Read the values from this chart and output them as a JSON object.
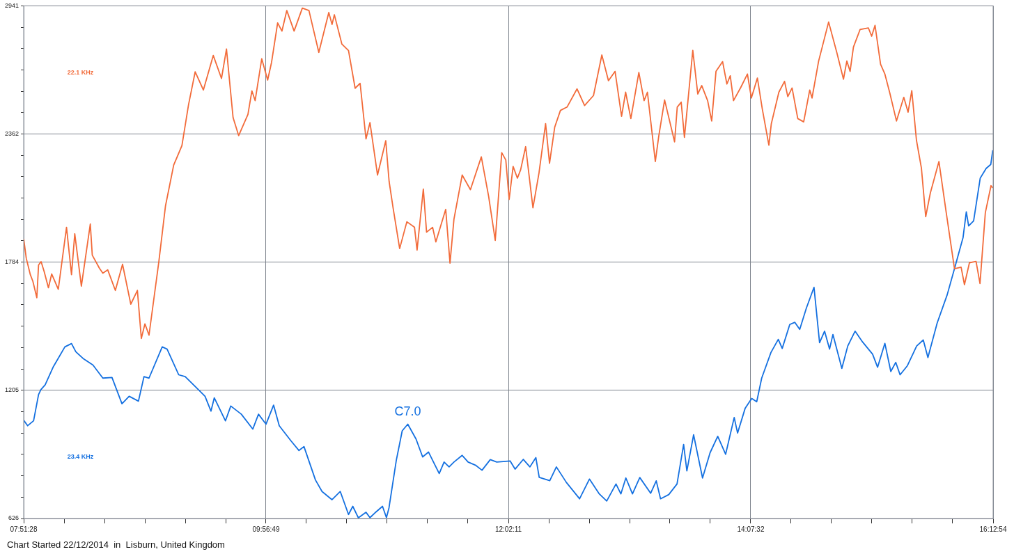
{
  "chart_data": {
    "type": "line",
    "xlim": [
      7.857778,
      16.215
    ],
    "xticks": [
      {
        "value": 7.857778,
        "label": "07:51:28"
      },
      {
        "value": 8.206,
        "label": null
      },
      {
        "value": 8.5542,
        "label": null
      },
      {
        "value": 8.9024,
        "label": null
      },
      {
        "value": 9.2506,
        "label": null
      },
      {
        "value": 9.5988,
        "label": null
      },
      {
        "value": 9.946944,
        "label": "09:56:49"
      },
      {
        "value": 10.2951,
        "label": null
      },
      {
        "value": 10.6433,
        "label": null
      },
      {
        "value": 10.9915,
        "label": null
      },
      {
        "value": 11.3397,
        "label": null
      },
      {
        "value": 11.6879,
        "label": null
      },
      {
        "value": 12.036389,
        "label": "12:02:11"
      },
      {
        "value": 12.3846,
        "label": null
      },
      {
        "value": 12.7328,
        "label": null
      },
      {
        "value": 13.081,
        "label": null
      },
      {
        "value": 13.4292,
        "label": null
      },
      {
        "value": 13.7774,
        "label": null
      },
      {
        "value": 14.125556,
        "label": "14:07:32"
      },
      {
        "value": 14.4738,
        "label": null
      },
      {
        "value": 14.822,
        "label": null
      },
      {
        "value": 15.1702,
        "label": null
      },
      {
        "value": 15.5184,
        "label": null
      },
      {
        "value": 15.8666,
        "label": null
      },
      {
        "value": 16.215,
        "label": "16:12:54"
      }
    ],
    "ylim": [
      626,
      2941
    ],
    "yticks": [
      626,
      {
        "value": 722.5,
        "label": null
      },
      {
        "value": 819,
        "label": null
      },
      {
        "value": 915.5,
        "label": null
      },
      {
        "value": 1012,
        "label": null
      },
      {
        "value": 1108.5,
        "label": null
      },
      1205,
      {
        "value": 1301.5,
        "label": null
      },
      {
        "value": 1398,
        "label": null
      },
      {
        "value": 1494.5,
        "label": null
      },
      {
        "value": 1591,
        "label": null
      },
      {
        "value": 1687.5,
        "label": null
      },
      1784,
      {
        "value": 1880.5,
        "label": null
      },
      {
        "value": 1977,
        "label": null
      },
      {
        "value": 2073.5,
        "label": null
      },
      {
        "value": 2170,
        "label": null
      },
      {
        "value": 2266.5,
        "label": null
      },
      2362,
      {
        "value": 2458.5,
        "label": null
      },
      {
        "value": 2555,
        "label": null
      },
      {
        "value": 2651.5,
        "label": null
      },
      {
        "value": 2748,
        "label": null
      },
      {
        "value": 2844.5,
        "label": null
      },
      2941
    ],
    "grid": true,
    "legend": false,
    "marker": "none",
    "line_style": "solid",
    "annotations": [
      {
        "text": "C7.0",
        "x": 11.169,
        "y": 1052
      },
      "Chart Started 22/12/2014  in  Lisburn, United Kingdom"
    ],
    "series": [
      {
        "name": "22.1 KHz",
        "color": "#f26b3a",
        "x": [
          7.858,
          7.88,
          7.915,
          7.937,
          7.971,
          7.986,
          8.008,
          8.034,
          8.071,
          8.099,
          8.156,
          8.227,
          8.27,
          8.298,
          8.355,
          8.432,
          8.449,
          8.511,
          8.54,
          8.582,
          8.648,
          8.71,
          8.781,
          8.838,
          8.872,
          8.903,
          8.938,
          9.023,
          9.08,
          9.151,
          9.222,
          9.279,
          9.336,
          9.407,
          9.492,
          9.563,
          9.606,
          9.663,
          9.711,
          9.791,
          9.825,
          9.853,
          9.91,
          9.961,
          9.995,
          10.047,
          10.084,
          10.126,
          10.189,
          10.26,
          10.317,
          10.402,
          10.488,
          10.516,
          10.536,
          10.601,
          10.658,
          10.715,
          10.758,
          10.809,
          10.843,
          10.908,
          10.979,
          11.008,
          11.042,
          11.099,
          11.161,
          11.227,
          11.249,
          11.303,
          11.331,
          11.383,
          11.411,
          11.496,
          11.533,
          11.567,
          11.638,
          11.709,
          11.803,
          11.866,
          11.923,
          11.979,
          12.014,
          12.043,
          12.077,
          12.114,
          12.142,
          12.185,
          12.248,
          12.3,
          12.357,
          12.391,
          12.436,
          12.485,
          12.542,
          12.628,
          12.693,
          12.77,
          12.842,
          12.899,
          12.956,
          13.012,
          13.047,
          13.092,
          13.161,
          13.206,
          13.235,
          13.303,
          13.332,
          13.383,
          13.469,
          13.492,
          13.526,
          13.554,
          13.626,
          13.669,
          13.703,
          13.754,
          13.789,
          13.826,
          13.883,
          13.92,
          13.949,
          13.977,
          14.04,
          14.097,
          14.131,
          14.183,
          14.225,
          14.282,
          14.303,
          14.368,
          14.417,
          14.445,
          14.482,
          14.531,
          14.582,
          14.634,
          14.654,
          14.711,
          14.797,
          14.868,
          14.925,
          14.954,
          14.982,
          15.011,
          15.068,
          15.14,
          15.168,
          15.197,
          15.245,
          15.282,
          15.325,
          15.382,
          15.445,
          15.482,
          15.514,
          15.554,
          15.597,
          15.634,
          15.674,
          15.748,
          15.811,
          15.882,
          15.939,
          15.968,
          16.011,
          16.068,
          16.102,
          16.148,
          16.197,
          16.211
        ],
        "values": [
          1889,
          1801,
          1727,
          1697,
          1623,
          1771,
          1786,
          1742,
          1668,
          1730,
          1661,
          1941,
          1727,
          1912,
          1675,
          1956,
          1815,
          1756,
          1734,
          1749,
          1656,
          1774,
          1594,
          1656,
          1439,
          1505,
          1454,
          1786,
          2037,
          2222,
          2310,
          2495,
          2643,
          2561,
          2717,
          2613,
          2746,
          2436,
          2355,
          2451,
          2557,
          2513,
          2702,
          2606,
          2687,
          2864,
          2827,
          2920,
          2827,
          2931,
          2920,
          2731,
          2911,
          2857,
          2901,
          2768,
          2739,
          2569,
          2591,
          2340,
          2414,
          2177,
          2332,
          2148,
          2030,
          1845,
          1966,
          1941,
          1838,
          2114,
          1919,
          1941,
          1875,
          2022,
          1779,
          1978,
          2177,
          2111,
          2259,
          2081,
          1882,
          2278,
          2245,
          2067,
          2216,
          2163,
          2201,
          2305,
          2029,
          2186,
          2409,
          2230,
          2394,
          2469,
          2484,
          2566,
          2491,
          2536,
          2719,
          2603,
          2645,
          2442,
          2551,
          2432,
          2640,
          2513,
          2551,
          2238,
          2350,
          2516,
          2327,
          2484,
          2506,
          2347,
          2740,
          2543,
          2581,
          2513,
          2421,
          2645,
          2689,
          2588,
          2625,
          2513,
          2573,
          2633,
          2525,
          2615,
          2476,
          2312,
          2409,
          2551,
          2600,
          2531,
          2570,
          2432,
          2417,
          2561,
          2525,
          2692,
          2868,
          2729,
          2610,
          2692,
          2645,
          2755,
          2834,
          2841,
          2804,
          2853,
          2677,
          2633,
          2546,
          2421,
          2528,
          2461,
          2558,
          2335,
          2208,
          1989,
          2096,
          2238,
          2007,
          1754,
          1761,
          1682,
          1781,
          1787,
          1687,
          2007,
          2129,
          2119
        ]
      },
      {
        "name": "23.4 KHz",
        "color": "#1470e0",
        "x": [
          7.858,
          7.892,
          7.943,
          7.986,
          8.006,
          8.043,
          8.114,
          8.213,
          8.27,
          8.307,
          8.369,
          8.455,
          8.54,
          8.619,
          8.705,
          8.767,
          8.847,
          8.895,
          8.938,
          9.052,
          9.094,
          9.194,
          9.25,
          9.364,
          9.421,
          9.472,
          9.501,
          9.597,
          9.643,
          9.734,
          9.833,
          9.882,
          9.947,
          10.012,
          10.061,
          10.16,
          10.231,
          10.274,
          10.373,
          10.43,
          10.516,
          10.587,
          10.658,
          10.695,
          10.743,
          10.809,
          10.843,
          10.885,
          10.951,
          10.985,
          11.007,
          11.07,
          11.121,
          11.169,
          11.24,
          11.297,
          11.348,
          11.383,
          11.44,
          11.482,
          11.525,
          11.567,
          11.638,
          11.689,
          11.752,
          11.809,
          11.88,
          11.936,
          12.051,
          12.094,
          12.165,
          12.222,
          12.273,
          12.302,
          12.393,
          12.45,
          12.536,
          12.65,
          12.735,
          12.82,
          12.884,
          12.964,
          13.006,
          13.049,
          13.106,
          13.169,
          13.263,
          13.311,
          13.348,
          13.419,
          13.49,
          13.547,
          13.575,
          13.633,
          13.71,
          13.775,
          13.841,
          13.909,
          13.983,
          14.012,
          14.077,
          14.134,
          14.177,
          14.22,
          14.3,
          14.363,
          14.397,
          14.462,
          14.505,
          14.548,
          14.605,
          14.671,
          14.719,
          14.762,
          14.805,
          14.834,
          14.911,
          14.962,
          15.025,
          15.09,
          15.176,
          15.219,
          15.282,
          15.333,
          15.376,
          15.413,
          15.476,
          15.556,
          15.613,
          15.653,
          15.733,
          15.819,
          15.89,
          15.956,
          15.984,
          16.004,
          16.047,
          16.104,
          16.155,
          16.195,
          16.212
        ],
        "values": [
          1070,
          1045,
          1067,
          1186,
          1208,
          1230,
          1312,
          1401,
          1416,
          1379,
          1349,
          1319,
          1260,
          1263,
          1144,
          1178,
          1156,
          1267,
          1260,
          1401,
          1391,
          1275,
          1267,
          1208,
          1178,
          1111,
          1171,
          1067,
          1134,
          1097,
          1030,
          1097,
          1052,
          1138,
          1045,
          978,
          933,
          951,
          800,
          748,
          711,
          748,
          644,
          681,
          629,
          654,
          630,
          651,
          681,
          630,
          674,
          889,
          1022,
          1052,
          985,
          904,
          926,
          889,
          829,
          881,
          859,
          881,
          911,
          881,
          867,
          844,
          892,
          881,
          886,
          849,
          893,
          859,
          901,
          812,
          797,
          859,
          789,
          715,
          804,
          737,
          705,
          782,
          737,
          809,
          737,
          811,
          740,
          796,
          715,
          734,
          782,
          960,
          841,
          1004,
          809,
          923,
          997,
          916,
          1082,
          1012,
          1123,
          1168,
          1153,
          1260,
          1376,
          1435,
          1394,
          1502,
          1512,
          1480,
          1576,
          1670,
          1420,
          1472,
          1391,
          1457,
          1304,
          1405,
          1472,
          1423,
          1368,
          1309,
          1417,
          1290,
          1331,
          1275,
          1316,
          1405,
          1432,
          1353,
          1509,
          1636,
          1769,
          1895,
          2011,
          1947,
          1970,
          2163,
          2207,
          2225,
          2289
        ]
      }
    ]
  }
}
